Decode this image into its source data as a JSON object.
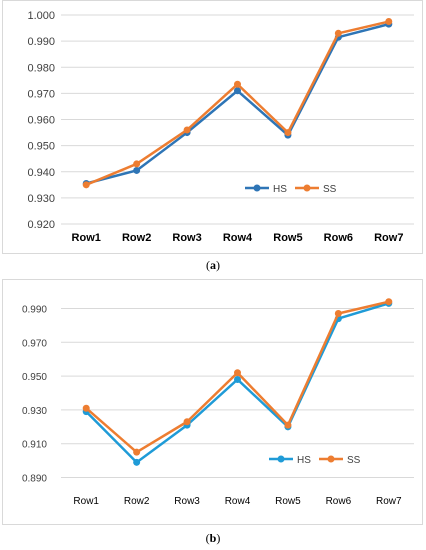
{
  "charts": [
    {
      "caption_letter": "a",
      "chart_data": {
        "type": "line",
        "categories": [
          "Row1",
          "Row2",
          "Row3",
          "Row4",
          "Row5",
          "Row6",
          "Row7"
        ],
        "series": [
          {
            "name": "HS",
            "color": "#2e75b6",
            "values": [
              0.9355,
              0.9405,
              0.955,
              0.971,
              0.954,
              0.9915,
              0.9965
            ]
          },
          {
            "name": "SS",
            "color": "#ed7d31",
            "values": [
              0.935,
              0.943,
              0.956,
              0.9735,
              0.955,
              0.993,
              0.9975
            ]
          }
        ],
        "ylim": [
          0.92,
          1.0
        ],
        "yticks": [
          "0.920",
          "0.930",
          "0.940",
          "0.950",
          "0.960",
          "0.970",
          "0.980",
          "0.990",
          "1.000"
        ],
        "ytick_values": [
          0.92,
          0.93,
          0.94,
          0.95,
          0.96,
          0.97,
          0.98,
          0.99,
          1.0
        ],
        "grid": true,
        "legend": "bottom-right",
        "category_label_weight": "bold"
      }
    },
    {
      "caption_letter": "b",
      "chart_data": {
        "type": "line",
        "categories": [
          "Row1",
          "Row2",
          "Row3",
          "Row4",
          "Row5",
          "Row6",
          "Row7"
        ],
        "series": [
          {
            "name": "HS",
            "color": "#1f9bd7",
            "values": [
              0.929,
              0.899,
              0.921,
              0.948,
              0.92,
              0.984,
              0.993
            ]
          },
          {
            "name": "SS",
            "color": "#ed7d31",
            "values": [
              0.931,
              0.905,
              0.923,
              0.952,
              0.921,
              0.987,
              0.994
            ]
          }
        ],
        "ylim": [
          0.885,
          0.995
        ],
        "yticks": [
          "0.890",
          "0.910",
          "0.930",
          "0.950",
          "0.970",
          "0.990"
        ],
        "ytick_values": [
          0.89,
          0.91,
          0.93,
          0.95,
          0.97,
          0.99
        ],
        "grid": true,
        "legend": "bottom-right",
        "category_label_weight": "normal"
      }
    }
  ]
}
